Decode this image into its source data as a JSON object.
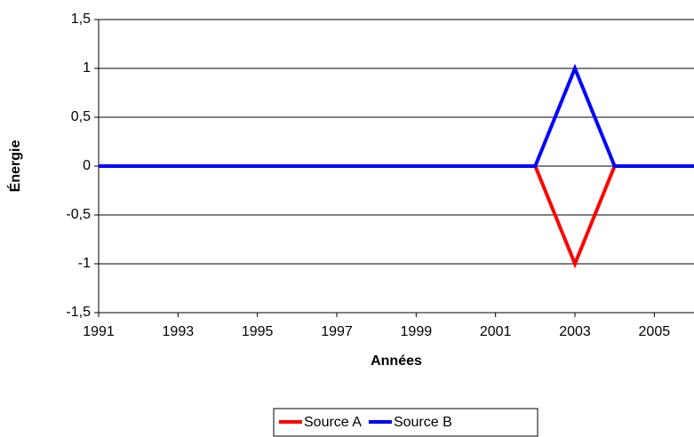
{
  "chart_data": {
    "type": "line",
    "x_label": "Années",
    "y_label": "Énergie",
    "x": [
      1991,
      1992,
      1993,
      1994,
      1995,
      1996,
      1997,
      1998,
      1999,
      2000,
      2001,
      2002,
      2003,
      2004,
      2005,
      2006
    ],
    "series": [
      {
        "name": "Source A",
        "color": "#ff0000",
        "values": [
          0,
          0,
          0,
          0,
          0,
          0,
          0,
          0,
          0,
          0,
          0,
          0,
          -1,
          0,
          0,
          0
        ]
      },
      {
        "name": "Source B",
        "color": "#0000ff",
        "values": [
          0,
          0,
          0,
          0,
          0,
          0,
          0,
          0,
          0,
          0,
          0,
          0,
          1,
          0,
          0,
          0
        ]
      }
    ],
    "xlim": [
      1991,
      2006
    ],
    "xticks": [
      1991,
      1993,
      1995,
      1997,
      1999,
      2001,
      2003,
      2005
    ],
    "ylim": [
      -1.5,
      1.5
    ],
    "yticks": [
      {
        "value": -1.5,
        "label": "-1,5"
      },
      -1,
      {
        "value": -0.5,
        "label": "-0,5"
      },
      0,
      {
        "value": 0.5,
        "label": "0,5"
      },
      1,
      {
        "value": 1.5,
        "label": "1,5"
      }
    ],
    "grid": true,
    "legend": "bottom"
  }
}
